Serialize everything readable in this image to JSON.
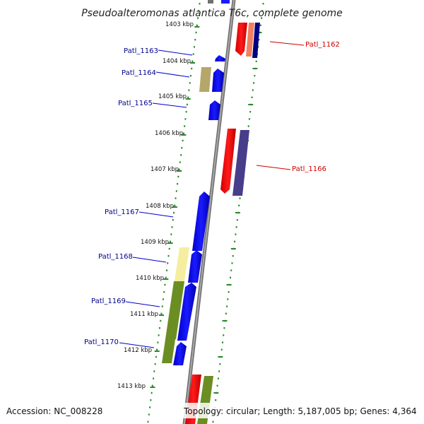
{
  "title": "Pseudoalteromonas atlantica T6c, complete genome",
  "footer": {
    "accession": "Accession: NC_008228",
    "topology": "Topology: circular; Length: 5,187,005 bp; Genes: 4,364"
  },
  "colors": {
    "forward_cds": "#0000ff",
    "reverse_cds": "#ff0000",
    "backbone": "#808080",
    "ticks": "#2a8a2a",
    "label_forward": "#00008b",
    "label_reverse": "#cc0000",
    "cog_khaki": "#b5a76a",
    "cog_lightyellow": "#f5eea0",
    "cog_olive": "#6b8e23",
    "cog_salmon": "#f08060",
    "cog_darkslate": "#483d8b",
    "cog_navy": "#000080"
  },
  "kbp_labels": [
    "1403 kbp",
    "1404 kbp",
    "1405 kbp",
    "1406 kbp",
    "1407 kbp",
    "1408 kbp",
    "1409 kbp",
    "1410 kbp",
    "1411 kbp",
    "1412 kbp",
    "1413 kbp"
  ],
  "gene_labels": [
    {
      "name": "Patl_1162",
      "strand": "reverse"
    },
    {
      "name": "Patl_1163",
      "strand": "forward"
    },
    {
      "name": "Patl_1164",
      "strand": "forward"
    },
    {
      "name": "Patl_1165",
      "strand": "forward"
    },
    {
      "name": "Patl_1166",
      "strand": "reverse"
    },
    {
      "name": "Patl_1167",
      "strand": "forward"
    },
    {
      "name": "Patl_1168",
      "strand": "forward"
    },
    {
      "name": "Patl_1169",
      "strand": "forward"
    },
    {
      "name": "Patl_1170",
      "strand": "forward"
    }
  ]
}
